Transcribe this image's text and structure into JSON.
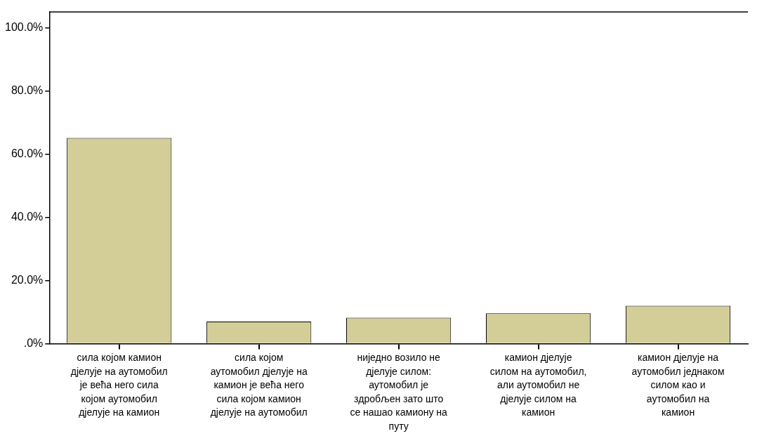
{
  "chart_data": {
    "type": "bar",
    "categories": [
      "сила којом камион дјелује на аутомобил је већа него сила којом аутомобил дјелује на камион",
      "сила којом аутомобил дјелује на камион је већа него сила којом камион дјелује на аутомобил",
      "ниједно возило не дјелује силом: аутомобил је здробљен зато што се нашао камиону на путу",
      "камион дјелује силом на аутомобил, али аутомобил не дјелује силом на камион",
      "камион дјелује на аутомобил једнаком силом као и аутомобил на камион"
    ],
    "values": [
      65.1,
      7.0,
      8.2,
      9.6,
      12.0
    ],
    "color": "#d3cd98",
    "ylim": [
      0,
      105
    ],
    "yticks": [
      {
        "value": 0,
        "label": ".0%"
      },
      {
        "value": 20,
        "label": "20.0%"
      },
      {
        "value": 40,
        "label": "40.0%"
      },
      {
        "value": 60,
        "label": "60.0%"
      },
      {
        "value": 80,
        "label": "80.0%"
      },
      {
        "value": 100,
        "label": "100.0%"
      }
    ],
    "grid": false,
    "legend": false
  }
}
